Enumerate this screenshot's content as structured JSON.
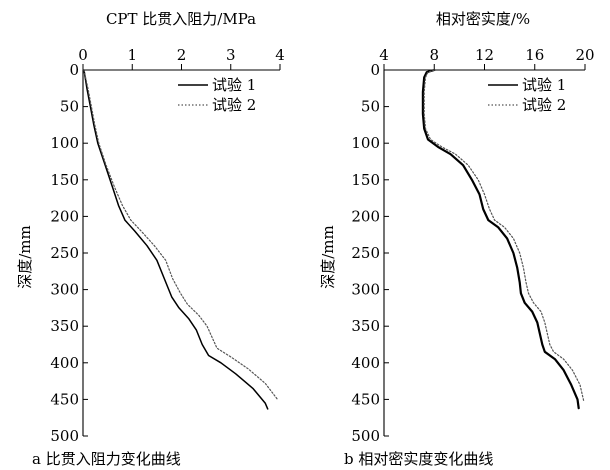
{
  "chart_data": [
    {
      "type": "line",
      "panel": "a",
      "caption": "a 比贯入阻力变化曲线",
      "xlabel": "CPT 比贯入阻力/MPa",
      "ylabel": "深度/mm",
      "xlim": [
        0,
        4
      ],
      "ylim": [
        0,
        500
      ],
      "x_axis_position": "top",
      "y_inverted": true,
      "x_ticks": [
        0,
        1,
        2,
        3,
        4
      ],
      "y_ticks": [
        0,
        50,
        100,
        150,
        200,
        250,
        300,
        350,
        400,
        450,
        500
      ],
      "legend_position": "top-right",
      "grid": false,
      "series": [
        {
          "name": "试验 1",
          "style": "solid",
          "color": "#000000",
          "points": [
            [
              0.02,
              0
            ],
            [
              0.08,
              25
            ],
            [
              0.15,
              50
            ],
            [
              0.22,
              75
            ],
            [
              0.3,
              100
            ],
            [
              0.45,
              130
            ],
            [
              0.6,
              160
            ],
            [
              0.72,
              185
            ],
            [
              0.85,
              205
            ],
            [
              1.05,
              220
            ],
            [
              1.3,
              240
            ],
            [
              1.5,
              260
            ],
            [
              1.65,
              285
            ],
            [
              1.8,
              310
            ],
            [
              1.95,
              325
            ],
            [
              2.15,
              340
            ],
            [
              2.3,
              355
            ],
            [
              2.42,
              375
            ],
            [
              2.55,
              390
            ],
            [
              2.8,
              400
            ],
            [
              3.1,
              415
            ],
            [
              3.45,
              435
            ],
            [
              3.7,
              455
            ],
            [
              3.75,
              463
            ]
          ]
        },
        {
          "name": "试验 2",
          "style": "dotted",
          "color": "#555555",
          "points": [
            [
              0.02,
              0
            ],
            [
              0.1,
              25
            ],
            [
              0.17,
              50
            ],
            [
              0.24,
              75
            ],
            [
              0.32,
              100
            ],
            [
              0.47,
              130
            ],
            [
              0.64,
              160
            ],
            [
              0.8,
              185
            ],
            [
              0.97,
              205
            ],
            [
              1.18,
              220
            ],
            [
              1.45,
              240
            ],
            [
              1.68,
              260
            ],
            [
              1.82,
              285
            ],
            [
              1.98,
              305
            ],
            [
              2.12,
              320
            ],
            [
              2.35,
              335
            ],
            [
              2.52,
              350
            ],
            [
              2.62,
              365
            ],
            [
              2.72,
              380
            ],
            [
              3.0,
              392
            ],
            [
              3.35,
              408
            ],
            [
              3.7,
              428
            ],
            [
              3.95,
              450
            ]
          ]
        }
      ]
    },
    {
      "type": "line",
      "panel": "b",
      "caption": "b 相对密实度变化曲线",
      "xlabel": "相对密实度/%",
      "ylabel": "深度/mm",
      "xlim": [
        4,
        20
      ],
      "ylim": [
        0,
        500
      ],
      "x_axis_position": "top",
      "y_inverted": true,
      "x_ticks": [
        4,
        8,
        12,
        16,
        20
      ],
      "y_ticks": [
        0,
        50,
        100,
        150,
        200,
        250,
        300,
        350,
        400,
        450,
        500
      ],
      "legend_position": "top-right",
      "grid": false,
      "series": [
        {
          "name": "试验 1",
          "style": "solid",
          "color": "#000000",
          "points": [
            [
              8.0,
              0
            ],
            [
              7.4,
              3
            ],
            [
              7.2,
              10
            ],
            [
              7.1,
              30
            ],
            [
              7.1,
              60
            ],
            [
              7.2,
              80
            ],
            [
              7.5,
              95
            ],
            [
              8.3,
              105
            ],
            [
              9.3,
              115
            ],
            [
              10.3,
              130
            ],
            [
              11.0,
              150
            ],
            [
              11.6,
              170
            ],
            [
              11.9,
              190
            ],
            [
              12.3,
              205
            ],
            [
              13.1,
              215
            ],
            [
              13.8,
              230
            ],
            [
              14.3,
              250
            ],
            [
              14.6,
              270
            ],
            [
              14.8,
              290
            ],
            [
              14.9,
              305
            ],
            [
              15.2,
              318
            ],
            [
              15.8,
              330
            ],
            [
              16.2,
              345
            ],
            [
              16.4,
              360
            ],
            [
              16.6,
              375
            ],
            [
              16.8,
              385
            ],
            [
              17.6,
              395
            ],
            [
              18.3,
              410
            ],
            [
              18.9,
              430
            ],
            [
              19.4,
              450
            ],
            [
              19.5,
              462
            ]
          ]
        },
        {
          "name": "试验 2",
          "style": "dotted",
          "color": "#555555",
          "points": [
            [
              8.0,
              0
            ],
            [
              7.5,
              3
            ],
            [
              7.3,
              10
            ],
            [
              7.2,
              30
            ],
            [
              7.2,
              60
            ],
            [
              7.3,
              80
            ],
            [
              7.7,
              95
            ],
            [
              8.6,
              105
            ],
            [
              9.7,
              115
            ],
            [
              10.7,
              130
            ],
            [
              11.5,
              150
            ],
            [
              12.0,
              170
            ],
            [
              12.4,
              190
            ],
            [
              12.8,
              205
            ],
            [
              13.6,
              215
            ],
            [
              14.3,
              230
            ],
            [
              14.8,
              250
            ],
            [
              15.1,
              270
            ],
            [
              15.3,
              290
            ],
            [
              15.5,
              305
            ],
            [
              15.9,
              318
            ],
            [
              16.5,
              330
            ],
            [
              16.8,
              345
            ],
            [
              17.0,
              360
            ],
            [
              17.2,
              375
            ],
            [
              17.5,
              385
            ],
            [
              18.3,
              395
            ],
            [
              19.0,
              410
            ],
            [
              19.6,
              430
            ],
            [
              19.9,
              452
            ]
          ]
        }
      ]
    }
  ]
}
